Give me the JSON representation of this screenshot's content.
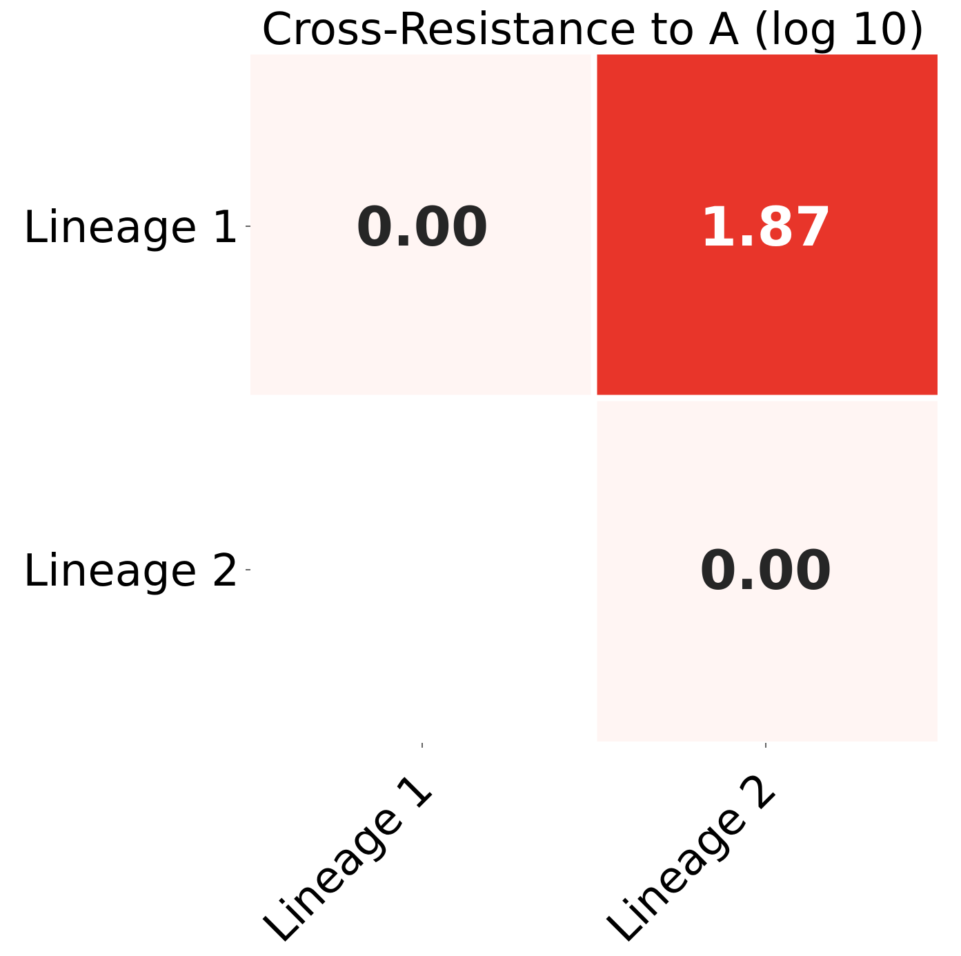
{
  "chart_data": {
    "type": "heatmap",
    "title": "Cross-Resistance to A (log 10)",
    "xlabel": "",
    "ylabel": "",
    "x_categories": [
      "Lineage 1",
      "Lineage 2"
    ],
    "y_categories": [
      "Lineage 1",
      "Lineage 2"
    ],
    "values": [
      [
        0.0,
        1.87
      ],
      [
        null,
        0.0
      ]
    ],
    "value_format": "0.00",
    "colormap": "Reds",
    "vmin": 0,
    "vmax": 2.3,
    "color_low": "#fff5f3",
    "color_high": "#e8352a",
    "text_dark": "#262626",
    "text_light": "#ffffff",
    "colorbar": false,
    "grid": false
  }
}
